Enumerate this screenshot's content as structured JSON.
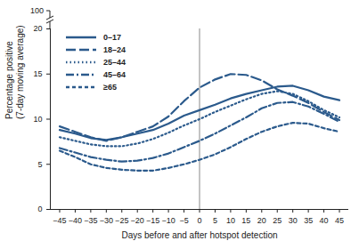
{
  "chart_data": {
    "type": "line",
    "xlabel": "Days before and after hotspot detection",
    "ylabel": [
      "Percentage positive",
      "(7-day moving average)"
    ],
    "x": [
      -45,
      -40,
      -35,
      -30,
      -25,
      -20,
      -15,
      -10,
      -5,
      0,
      5,
      10,
      15,
      20,
      25,
      30,
      35,
      40,
      45
    ],
    "xlim": [
      -48,
      48
    ],
    "xticks": [
      -45,
      -40,
      -35,
      -30,
      -25,
      -20,
      -15,
      -10,
      -5,
      0,
      5,
      10,
      15,
      20,
      25,
      30,
      35,
      40,
      45
    ],
    "ylim": [
      0,
      20
    ],
    "yticks": [
      0,
      5,
      10,
      15,
      20
    ],
    "y_break_tick": 100,
    "reference_x": 0,
    "legend": "top-left",
    "series": [
      {
        "name": "0–17",
        "color": "#2b5a8c",
        "line_style": "solid",
        "values": [
          8.8,
          8.4,
          7.9,
          7.7,
          8.0,
          8.4,
          8.8,
          9.5,
          10.4,
          11.0,
          11.6,
          12.3,
          12.8,
          13.2,
          13.6,
          13.7,
          13.2,
          12.5,
          12.1
        ]
      },
      {
        "name": "18–24",
        "color": "#2b5a8c",
        "line_style": "long_dash",
        "values": [
          9.2,
          8.6,
          8.0,
          7.6,
          8.0,
          8.6,
          9.2,
          10.3,
          12.0,
          13.5,
          14.4,
          15.0,
          14.9,
          14.3,
          13.3,
          12.6,
          11.8,
          10.8,
          9.9
        ]
      },
      {
        "name": "25–44",
        "color": "#2b5a8c",
        "line_style": "dotted",
        "values": [
          8.0,
          7.6,
          7.2,
          7.0,
          7.0,
          7.3,
          7.8,
          8.5,
          9.3,
          10.0,
          10.8,
          11.5,
          12.2,
          12.8,
          13.1,
          12.8,
          12.0,
          11.0,
          10.2
        ]
      },
      {
        "name": "45–64",
        "color": "#2b5a8c",
        "line_style": "dash_dot",
        "values": [
          6.8,
          6.3,
          5.8,
          5.5,
          5.3,
          5.4,
          5.7,
          6.2,
          6.9,
          7.6,
          8.4,
          9.3,
          10.2,
          11.2,
          11.8,
          11.9,
          11.4,
          10.6,
          9.7
        ]
      },
      {
        "name": "≥65",
        "color": "#2b5a8c",
        "line_style": "dashed",
        "values": [
          6.5,
          5.8,
          5.0,
          4.6,
          4.4,
          4.3,
          4.3,
          4.6,
          5.0,
          5.5,
          6.1,
          6.9,
          7.8,
          8.6,
          9.2,
          9.6,
          9.5,
          9.0,
          8.6
        ]
      }
    ]
  }
}
